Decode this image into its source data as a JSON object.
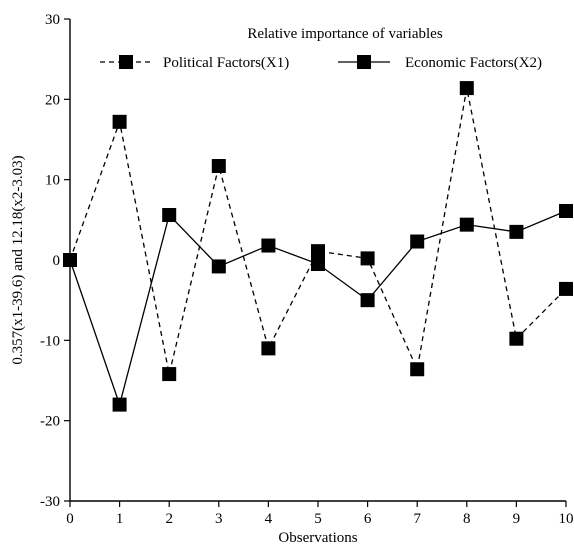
{
  "chart_data": {
    "type": "line",
    "title": "Relative importance of variables",
    "xlabel": "Observations",
    "ylabel": "0.357(x1-39.6) and 12.18(x2-3.03)",
    "x": [
      0,
      1,
      2,
      3,
      4,
      5,
      6,
      7,
      8,
      9,
      10
    ],
    "xlim": [
      0,
      10
    ],
    "ylim": [
      -30,
      30
    ],
    "xticks": [
      0,
      1,
      2,
      3,
      4,
      5,
      6,
      7,
      8,
      9,
      10
    ],
    "yticks": [
      -30,
      -20,
      -10,
      0,
      10,
      20,
      30
    ],
    "grid": false,
    "legend_position": "top",
    "series": [
      {
        "name": "Political Factors(X1)",
        "line_style": "dashed",
        "marker": "square",
        "color": "#000000",
        "values": [
          0,
          17.2,
          -14.2,
          11.7,
          -11,
          1.1,
          0.2,
          -13.6,
          21.4,
          -9.8,
          -3.6
        ]
      },
      {
        "name": "Economic Factors(X2)",
        "line_style": "solid",
        "marker": "square",
        "color": "#000000",
        "values": [
          0,
          -18,
          5.6,
          -0.8,
          1.8,
          -0.5,
          -5,
          2.3,
          4.4,
          3.5,
          6.1
        ]
      }
    ]
  }
}
